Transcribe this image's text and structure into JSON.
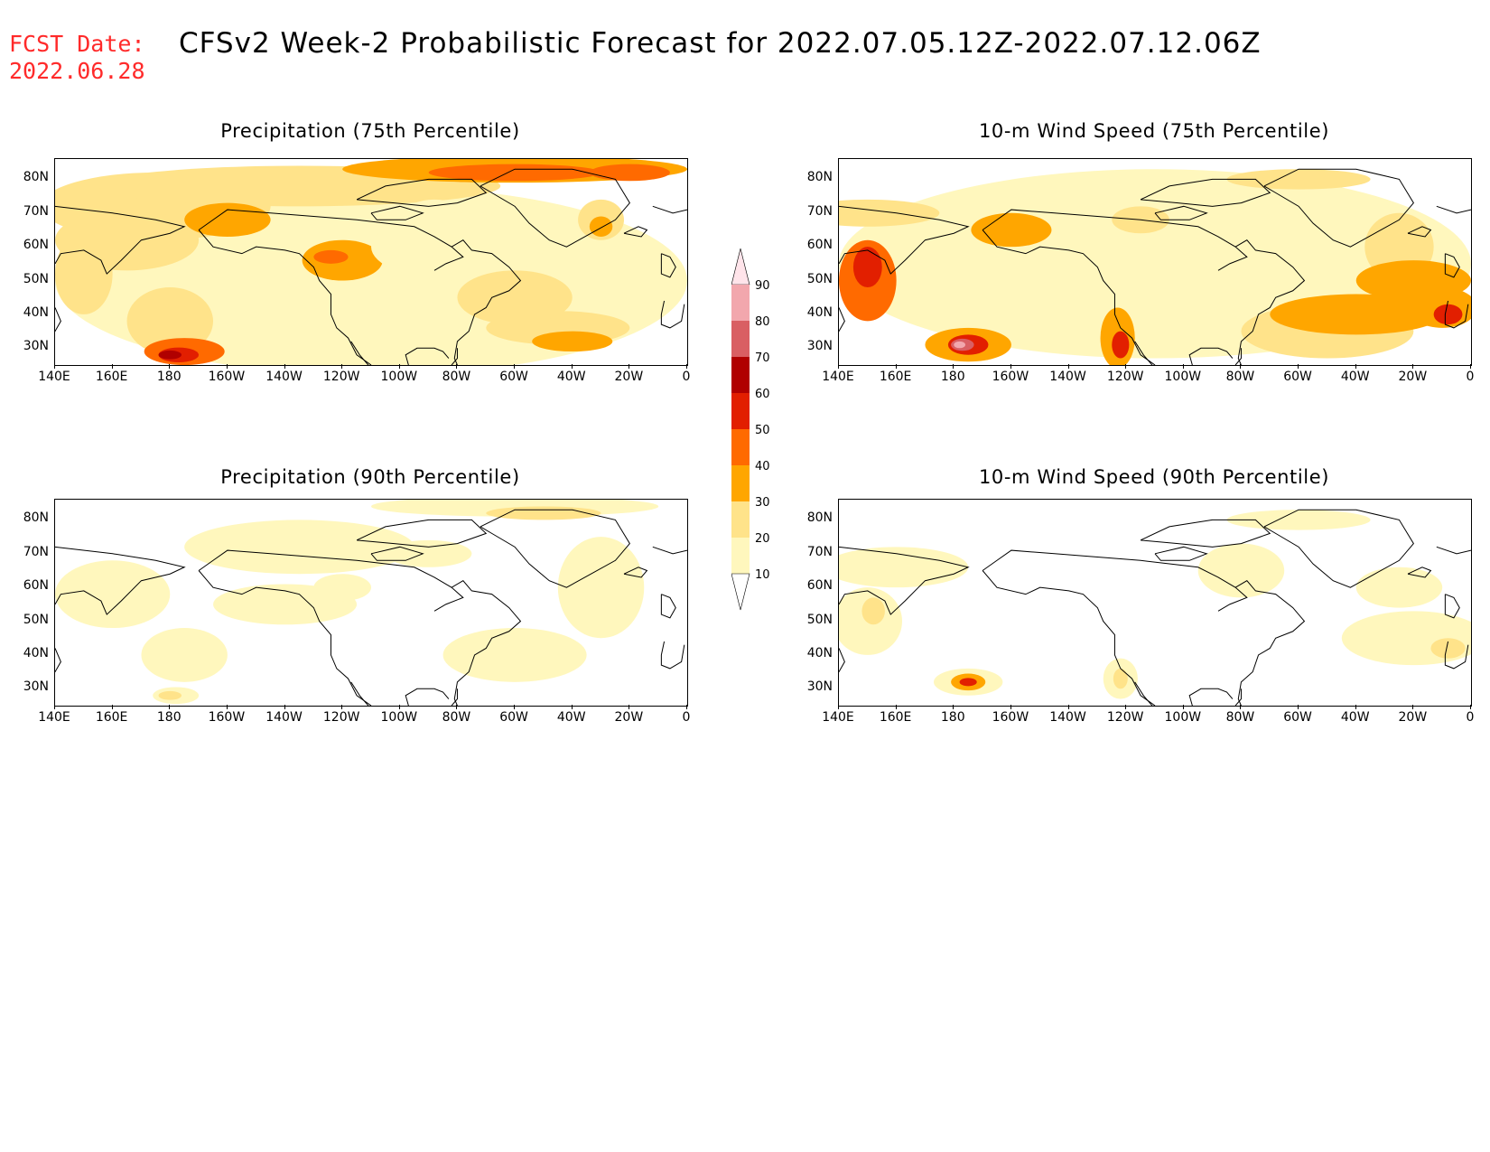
{
  "header": {
    "fcst_line1": "FCST Date:",
    "fcst_line2": "2022.06.28",
    "title": "CFSv2 Week-2 Probabilistic Forecast for 2022.07.05.12Z-2022.07.12.06Z"
  },
  "panels": [
    {
      "title": "Precipitation (75th Percentile)"
    },
    {
      "title": "10-m Wind Speed (75th Percentile)"
    },
    {
      "title": "Precipitation (90th Percentile)"
    },
    {
      "title": "10-m Wind Speed (90th Percentile)"
    }
  ],
  "axes": {
    "lon_ticks": [
      "140E",
      "160E",
      "180",
      "160W",
      "140W",
      "120W",
      "100W",
      "80W",
      "60W",
      "40W",
      "20W",
      "0"
    ],
    "lat_ticks": [
      "80N",
      "70N",
      "60N",
      "50N",
      "40N",
      "30N"
    ],
    "lon_range": [
      140,
      360
    ],
    "lat_range": [
      25,
      86
    ]
  },
  "colorbar": {
    "labels": [
      "10",
      "20",
      "30",
      "40",
      "50",
      "60",
      "70",
      "80",
      "90"
    ],
    "colors": [
      "#fff7bd",
      "#ffe38a",
      "#ffa600",
      "#ff6a00",
      "#e21f00",
      "#b00000",
      "#d95f63",
      "#f2a7ad",
      "#ffe4ea"
    ]
  }
}
